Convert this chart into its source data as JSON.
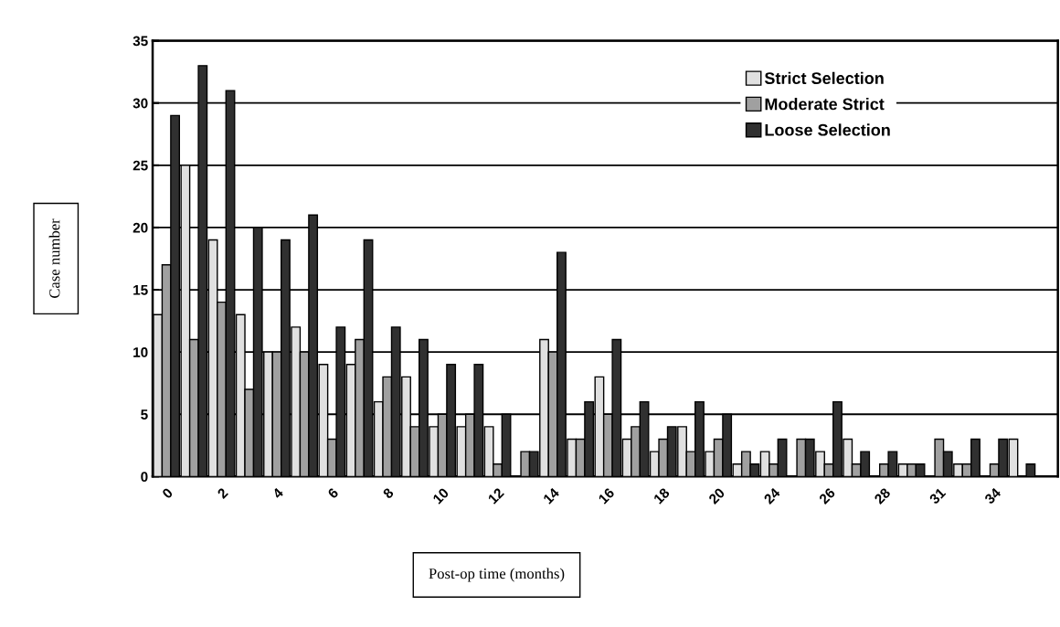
{
  "chart_data": {
    "type": "bar",
    "xlabel": "Post-op time (months)",
    "ylabel": "Case number",
    "categories": [
      "0",
      null,
      "2",
      null,
      "4",
      null,
      "6",
      null,
      "8",
      null,
      "10",
      null,
      "12",
      null,
      "14",
      null,
      "16",
      null,
      "18",
      null,
      "20",
      null,
      "24",
      null,
      "26",
      null,
      "28",
      null,
      "31",
      null,
      "34",
      null
    ],
    "series": [
      {
        "name": "Strict Selection",
        "color": "#e0e0e0",
        "values": [
          13,
          25,
          19,
          13,
          10,
          12,
          9,
          9,
          6,
          8,
          4,
          4,
          4,
          0,
          11,
          3,
          8,
          3,
          2,
          4,
          2,
          1,
          2,
          0,
          2,
          3,
          0,
          1,
          0,
          1,
          0,
          3
        ]
      },
      {
        "name": "Moderate Strict",
        "color": "#a0a0a0",
        "values": [
          17,
          11,
          14,
          7,
          10,
          10,
          3,
          11,
          8,
          4,
          5,
          5,
          1,
          2,
          10,
          3,
          5,
          4,
          3,
          2,
          3,
          2,
          1,
          3,
          1,
          1,
          1,
          1,
          3,
          1,
          1,
          0
        ]
      },
      {
        "name": "Loose Selection",
        "color": "#303030",
        "values": [
          29,
          33,
          31,
          20,
          19,
          21,
          12,
          19,
          12,
          11,
          9,
          9,
          5,
          2,
          18,
          6,
          11,
          6,
          4,
          6,
          5,
          1,
          3,
          3,
          6,
          2,
          2,
          1,
          2,
          3,
          3,
          1
        ]
      }
    ],
    "ylim": [
      0,
      35
    ],
    "yticks": [
      0,
      5,
      10,
      15,
      20,
      25,
      30,
      35
    ],
    "grid": "y",
    "legend": "top right"
  }
}
